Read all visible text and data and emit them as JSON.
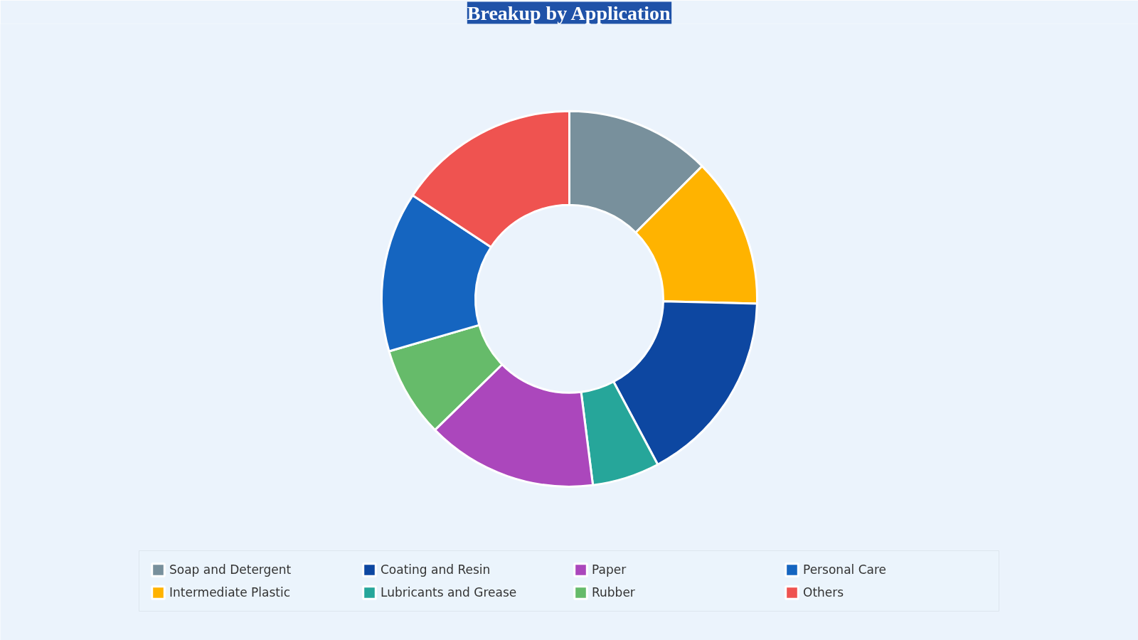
{
  "chart_data": {
    "type": "donut",
    "title": "Breakup by Application",
    "categories": [
      "Soap and Detergent",
      "Intermediate Plastic",
      "Coating and Resin",
      "Lubricants and Grease",
      "Paper",
      "Rubber",
      "Personal Care",
      "Others"
    ],
    "values": [
      12.5,
      12.9,
      16.8,
      5.8,
      14.7,
      7.8,
      13.8,
      15.7
    ],
    "colors": [
      "#78909c",
      "#ffb300",
      "#0d47a1",
      "#26a69a",
      "#ab47bc",
      "#66bb6a",
      "#1565c0",
      "#ef5350"
    ],
    "legend": "bottom"
  }
}
